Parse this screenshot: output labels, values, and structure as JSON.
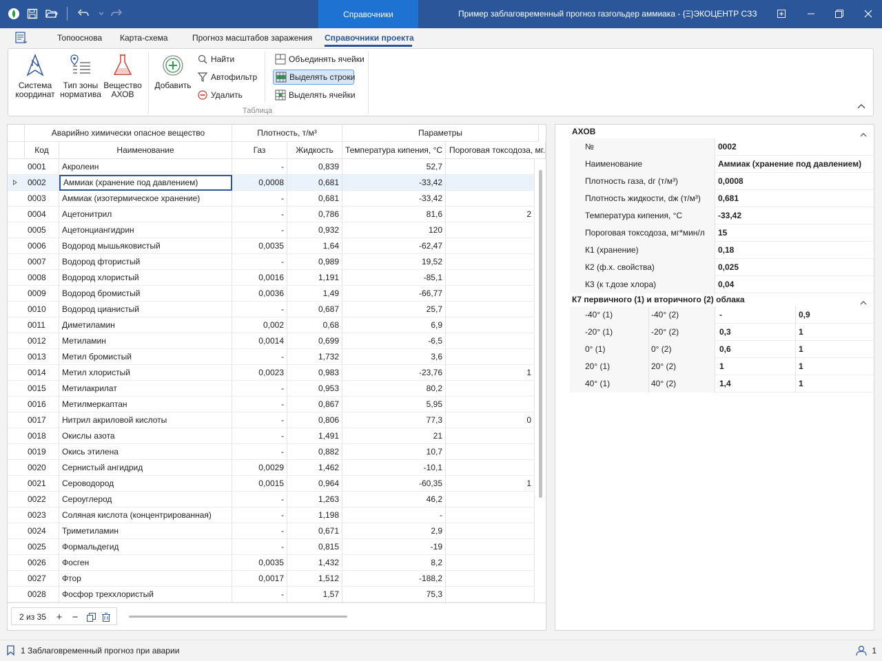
{
  "titlebar": {
    "context_tab": "Справочники",
    "window_title": "Пример заблаговременный прогноз газгольдер аммиака - {Ξ}ЭКОЦЕНТР СЗЗ"
  },
  "ribbon_tabs": [
    "Топооснова",
    "Карта-схема",
    "Прогноз масштабов заражения",
    "Справочники проекта"
  ],
  "ribbon": {
    "big_buttons": [
      {
        "line1": "Система",
        "line2": "координат"
      },
      {
        "line1": "Тип зоны",
        "line2": "норматива"
      },
      {
        "line1": "Вещество",
        "line2": "АХОВ"
      },
      {
        "line1": "Добавить",
        "line2": ""
      }
    ],
    "find": "Найти",
    "autofilter": "Автофильтр",
    "delete": "Удалить",
    "merge_cells": "Объединять ячейки",
    "select_rows": "Выделять строки",
    "select_cells": "Выделять ячейки",
    "group_label": "Таблица"
  },
  "grid": {
    "band_headers": [
      "Аварийно химически опасное вещество",
      "Плотность, т/м³",
      "Параметры"
    ],
    "columns": [
      "Код",
      "Наименование",
      "Газ",
      "Жидкость",
      "Температура кипения, °С",
      "Пороговая токсодоза, мг..."
    ],
    "rows": [
      {
        "code": "0001",
        "name": "Акролеин",
        "gas": "-",
        "liquid": "0,839",
        "boil": "52,7",
        "tox": ""
      },
      {
        "code": "0002",
        "name": "Аммиак (хранение под давлением)",
        "gas": "0,0008",
        "liquid": "0,681",
        "boil": "-33,42",
        "tox": ""
      },
      {
        "code": "0003",
        "name": "Аммиак (изотермическое хранение)",
        "gas": "-",
        "liquid": "0,681",
        "boil": "-33,42",
        "tox": ""
      },
      {
        "code": "0004",
        "name": "Ацетонитрил",
        "gas": "-",
        "liquid": "0,786",
        "boil": "81,6",
        "tox": "2"
      },
      {
        "code": "0005",
        "name": "Ацетонциангидрин",
        "gas": "-",
        "liquid": "0,932",
        "boil": "120",
        "tox": ""
      },
      {
        "code": "0006",
        "name": "Водород мышьяковистый",
        "gas": "0,0035",
        "liquid": "1,64",
        "boil": "-62,47",
        "tox": ""
      },
      {
        "code": "0007",
        "name": "Водород фтористый",
        "gas": "-",
        "liquid": "0,989",
        "boil": "19,52",
        "tox": ""
      },
      {
        "code": "0008",
        "name": "Водород хлористый",
        "gas": "0,0016",
        "liquid": "1,191",
        "boil": "-85,1",
        "tox": ""
      },
      {
        "code": "0009",
        "name": "Водород бромистый",
        "gas": "0,0036",
        "liquid": "1,49",
        "boil": "-66,77",
        "tox": ""
      },
      {
        "code": "0010",
        "name": "Водород цианистый",
        "gas": "-",
        "liquid": "0,687",
        "boil": "25,7",
        "tox": ""
      },
      {
        "code": "0011",
        "name": "Диметиламин",
        "gas": "0,002",
        "liquid": "0,68",
        "boil": "6,9",
        "tox": ""
      },
      {
        "code": "0012",
        "name": "Метиламин",
        "gas": "0,0014",
        "liquid": "0,699",
        "boil": "-6,5",
        "tox": ""
      },
      {
        "code": "0013",
        "name": "Метил бромистый",
        "gas": "-",
        "liquid": "1,732",
        "boil": "3,6",
        "tox": ""
      },
      {
        "code": "0014",
        "name": "Метил хлористый",
        "gas": "0,0023",
        "liquid": "0,983",
        "boil": "-23,76",
        "tox": "1"
      },
      {
        "code": "0015",
        "name": "Метилакрилат",
        "gas": "-",
        "liquid": "0,953",
        "boil": "80,2",
        "tox": ""
      },
      {
        "code": "0016",
        "name": "Метилмеркаптан",
        "gas": "-",
        "liquid": "0,867",
        "boil": "5,95",
        "tox": ""
      },
      {
        "code": "0017",
        "name": "Нитрил акриловой кислоты",
        "gas": "-",
        "liquid": "0,806",
        "boil": "77,3",
        "tox": "0"
      },
      {
        "code": "0018",
        "name": "Окислы азота",
        "gas": "-",
        "liquid": "1,491",
        "boil": "21",
        "tox": ""
      },
      {
        "code": "0019",
        "name": "Окись этилена",
        "gas": "-",
        "liquid": "0,882",
        "boil": "10,7",
        "tox": ""
      },
      {
        "code": "0020",
        "name": "Сернистый ангидрид",
        "gas": "0,0029",
        "liquid": "1,462",
        "boil": "-10,1",
        "tox": ""
      },
      {
        "code": "0021",
        "name": "Сероводород",
        "gas": "0,0015",
        "liquid": "0,964",
        "boil": "-60,35",
        "tox": "1"
      },
      {
        "code": "0022",
        "name": "Сероуглерод",
        "gas": "-",
        "liquid": "1,263",
        "boil": "46,2",
        "tox": ""
      },
      {
        "code": "0023",
        "name": "Соляная кислота (концентрированная)",
        "gas": "-",
        "liquid": "1,198",
        "boil": "-",
        "tox": ""
      },
      {
        "code": "0024",
        "name": "Триметиламин",
        "gas": "-",
        "liquid": "0,671",
        "boil": "2,9",
        "tox": ""
      },
      {
        "code": "0025",
        "name": "Формальдегид",
        "gas": "-",
        "liquid": "0,815",
        "boil": "-19",
        "tox": ""
      },
      {
        "code": "0026",
        "name": "Фосген",
        "gas": "0,0035",
        "liquid": "1,432",
        "boil": "8,2",
        "tox": ""
      },
      {
        "code": "0027",
        "name": "Фтор",
        "gas": "0,0017",
        "liquid": "1,512",
        "boil": "-188,2",
        "tox": ""
      },
      {
        "code": "0028",
        "name": "Фосфор треххлористый",
        "gas": "-",
        "liquid": "1,57",
        "boil": "75,3",
        "tox": ""
      }
    ],
    "navigator": "2 из 35"
  },
  "props": {
    "section1": "АХОВ",
    "rows": [
      {
        "label": "№",
        "value": "0002"
      },
      {
        "label": "Наименование",
        "value": "Аммиак (хранение под давлением)"
      },
      {
        "label": "Плотность газа, dг (т/м³)",
        "value": "0,0008"
      },
      {
        "label": "Плотность жидкости, dж (т/м³)",
        "value": "0,681"
      },
      {
        "label": "Температура кипения, °С",
        "value": "-33,42"
      },
      {
        "label": "Пороговая токсодоза, мг*мин/л",
        "value": "15"
      },
      {
        "label": "К1 (хранение)",
        "value": "0,18"
      },
      {
        "label": "К2 (ф.х. свойства)",
        "value": "0,025"
      },
      {
        "label": "К3 (к т.дозе хлора)",
        "value": "0,04"
      }
    ],
    "section2": "К7 первичного (1) и вторичного (2) облака",
    "k7": [
      {
        "l1": "-40° (1)",
        "l2": "-40° (2)",
        "v1": "-",
        "v2": "0,9"
      },
      {
        "l1": "-20° (1)",
        "l2": "-20° (2)",
        "v1": "0,3",
        "v2": "1"
      },
      {
        "l1": "0° (1)",
        "l2": "0° (2)",
        "v1": "0,6",
        "v2": "1"
      },
      {
        "l1": "20° (1)",
        "l2": "20° (2)",
        "v1": "1",
        "v2": "1"
      },
      {
        "l1": "40° (1)",
        "l2": "40° (2)",
        "v1": "1,4",
        "v2": "1"
      }
    ]
  },
  "status": {
    "text": "1 Заблаговременный прогноз при аварии",
    "users": "1"
  }
}
